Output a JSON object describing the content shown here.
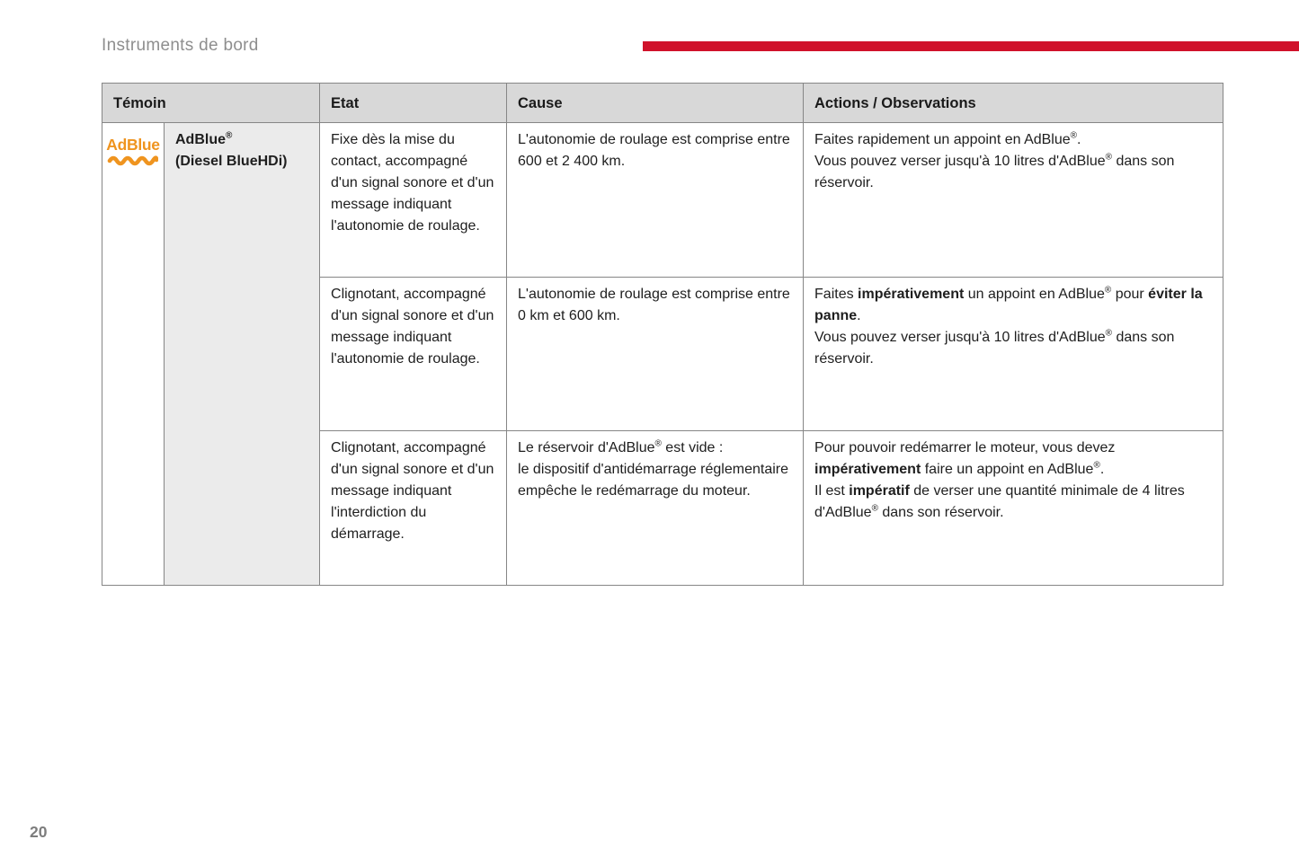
{
  "page": {
    "title": "Instruments de bord",
    "page_number": "20"
  },
  "colors": {
    "accent_red": "#d0122b",
    "adblue_orange": "#ef941f",
    "header_bg": "#d8d8d8",
    "temoin_bg": "#ebebeb",
    "border": "#868686"
  },
  "icons": {
    "adblue_wave": "wavy-line-icon"
  },
  "table": {
    "headers": {
      "temoin": "Témoin",
      "etat": "Etat",
      "cause": "Cause",
      "actions": "Actions / Observations"
    },
    "temoin": {
      "icon_label": "AdBlue",
      "name": [
        {
          "t": "AdBlue",
          "b": true
        },
        {
          "t": "®",
          "b": true,
          "sup": true
        },
        {
          "br": true
        },
        {
          "t": "(Diesel BlueHDi)",
          "b": true
        }
      ]
    },
    "rows": [
      {
        "etat": [
          {
            "t": "Fixe dès la mise du contact, accompagné d'un signal sonore et d'un message indiquant l'autonomie de roulage."
          }
        ],
        "cause": [
          {
            "t": "L'autonomie de roulage est comprise entre 600 et 2 400 km."
          }
        ],
        "actions": [
          {
            "t": "Faites rapidement un appoint en AdBlue"
          },
          {
            "t": "®",
            "sup": true
          },
          {
            "t": "."
          },
          {
            "br": true
          },
          {
            "t": "Vous pouvez verser jusqu'à 10 litres d'AdBlue"
          },
          {
            "t": "®",
            "sup": true
          },
          {
            "t": " dans son réservoir."
          }
        ]
      },
      {
        "etat": [
          {
            "t": "Clignotant, accompagné d'un signal sonore et d'un message indiquant l'autonomie de roulage."
          }
        ],
        "cause": [
          {
            "t": "L'autonomie de roulage est comprise entre 0 km et 600 km."
          }
        ],
        "actions": [
          {
            "t": "Faites "
          },
          {
            "t": "impérativement",
            "b": true
          },
          {
            "t": " un appoint en AdBlue"
          },
          {
            "t": "®",
            "sup": true
          },
          {
            "t": " pour "
          },
          {
            "t": "éviter la panne",
            "b": true
          },
          {
            "t": "."
          },
          {
            "br": true
          },
          {
            "t": "Vous pouvez verser jusqu'à 10 litres d'AdBlue"
          },
          {
            "t": "®",
            "sup": true
          },
          {
            "t": " dans son réservoir."
          }
        ]
      },
      {
        "etat": [
          {
            "t": "Clignotant, accompagné d'un signal sonore et d'un message indiquant l'interdiction du démarrage."
          }
        ],
        "cause": [
          {
            "t": "Le réservoir d'AdBlue"
          },
          {
            "t": "®",
            "sup": true
          },
          {
            "t": " est vide :"
          },
          {
            "br": true
          },
          {
            "t": "le dispositif d'antidémarrage réglementaire empêche le redémarrage du moteur."
          }
        ],
        "actions": [
          {
            "t": "Pour pouvoir redémarrer le moteur, vous devez "
          },
          {
            "t": "impérativement",
            "b": true
          },
          {
            "t": " faire un appoint en AdBlue"
          },
          {
            "t": "®",
            "sup": true
          },
          {
            "t": "."
          },
          {
            "br": true
          },
          {
            "t": "Il est "
          },
          {
            "t": "impératif",
            "b": true
          },
          {
            "t": " de verser une quantité minimale de 4 litres d'AdBlue"
          },
          {
            "t": "®",
            "sup": true
          },
          {
            "t": " dans son réservoir."
          }
        ]
      }
    ]
  }
}
